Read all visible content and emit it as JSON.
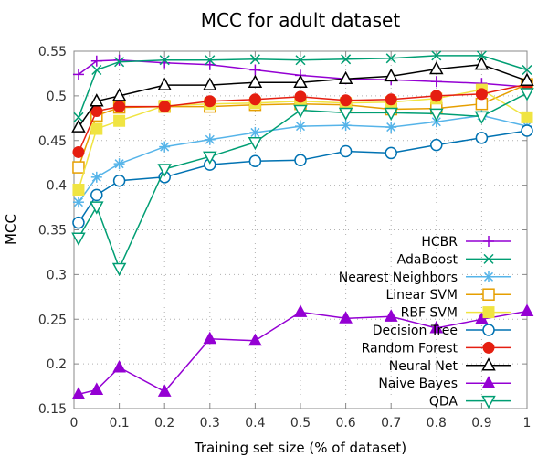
{
  "chart_data": {
    "type": "line",
    "title": "MCC for adult dataset",
    "xlabel": "Training set size (% of dataset)",
    "ylabel": "MCC",
    "xlim": [
      0,
      1
    ],
    "ylim": [
      0.15,
      0.55
    ],
    "xticks": [
      "0",
      "0.1",
      "0.2",
      "0.3",
      "0.4",
      "0.5",
      "0.6",
      "0.7",
      "0.8",
      "0.9",
      "1"
    ],
    "yticks": [
      "0.15",
      "0.2",
      "0.25",
      "0.3",
      "0.35",
      "0.4",
      "0.45",
      "0.5",
      "0.55"
    ],
    "grid": true,
    "legend_position": "bottom-right",
    "x": [
      0.01,
      0.05,
      0.1,
      0.2,
      0.3,
      0.4,
      0.5,
      0.6,
      0.7,
      0.8,
      0.9,
      1.0
    ],
    "series": [
      {
        "name": "HCBR",
        "color": "#9400d3",
        "marker": "plus",
        "values": [
          0.524,
          0.539,
          0.54,
          0.537,
          0.535,
          0.529,
          0.523,
          0.519,
          0.518,
          0.516,
          0.514,
          0.51
        ]
      },
      {
        "name": "AdaBoost",
        "color": "#009e73",
        "marker": "x",
        "values": [
          0.476,
          0.529,
          0.538,
          0.54,
          0.54,
          0.541,
          0.54,
          0.541,
          0.542,
          0.545,
          0.545,
          0.529
        ]
      },
      {
        "name": "Nearest Neighbors",
        "color": "#56b4e9",
        "marker": "star",
        "values": [
          0.381,
          0.409,
          0.424,
          0.443,
          0.451,
          0.459,
          0.466,
          0.467,
          0.465,
          0.471,
          0.478,
          0.466
        ]
      },
      {
        "name": "Linear SVM",
        "color": "#e69f00",
        "marker": "square-open",
        "values": [
          0.42,
          0.478,
          0.487,
          0.488,
          0.488,
          0.49,
          0.491,
          0.49,
          0.485,
          0.486,
          0.491,
          0.513
        ]
      },
      {
        "name": "RBF SVM",
        "color": "#f0e442",
        "marker": "square-filled",
        "values": [
          0.395,
          0.463,
          0.472,
          0.489,
          0.491,
          0.492,
          0.494,
          0.492,
          0.493,
          0.497,
          0.507,
          0.476
        ]
      },
      {
        "name": "Decision Tree",
        "color": "#0072b2",
        "marker": "circle-open",
        "values": [
          0.358,
          0.389,
          0.405,
          0.409,
          0.423,
          0.427,
          0.428,
          0.438,
          0.436,
          0.445,
          0.453,
          0.461
        ]
      },
      {
        "name": "Random Forest",
        "color": "#e51e10",
        "marker": "circle-filled",
        "values": [
          0.437,
          0.483,
          0.488,
          0.488,
          0.494,
          0.496,
          0.499,
          0.495,
          0.496,
          0.5,
          0.502,
          0.513
        ]
      },
      {
        "name": "Neural Net",
        "color": "#000000",
        "marker": "triangle-open",
        "values": [
          0.465,
          0.494,
          0.5,
          0.512,
          0.512,
          0.515,
          0.515,
          0.519,
          0.522,
          0.53,
          0.535,
          0.517
        ]
      },
      {
        "name": "Naive Bayes",
        "color": "#9400d3",
        "marker": "triangle-filled",
        "values": [
          0.166,
          0.171,
          0.196,
          0.169,
          0.228,
          0.226,
          0.258,
          0.251,
          0.253,
          0.24,
          0.25,
          0.259
        ]
      },
      {
        "name": "QDA",
        "color": "#009e73",
        "marker": "triangle-down-open",
        "values": [
          0.341,
          0.376,
          0.307,
          0.418,
          0.432,
          0.448,
          0.484,
          0.481,
          0.481,
          0.48,
          0.477,
          0.503
        ]
      }
    ]
  }
}
